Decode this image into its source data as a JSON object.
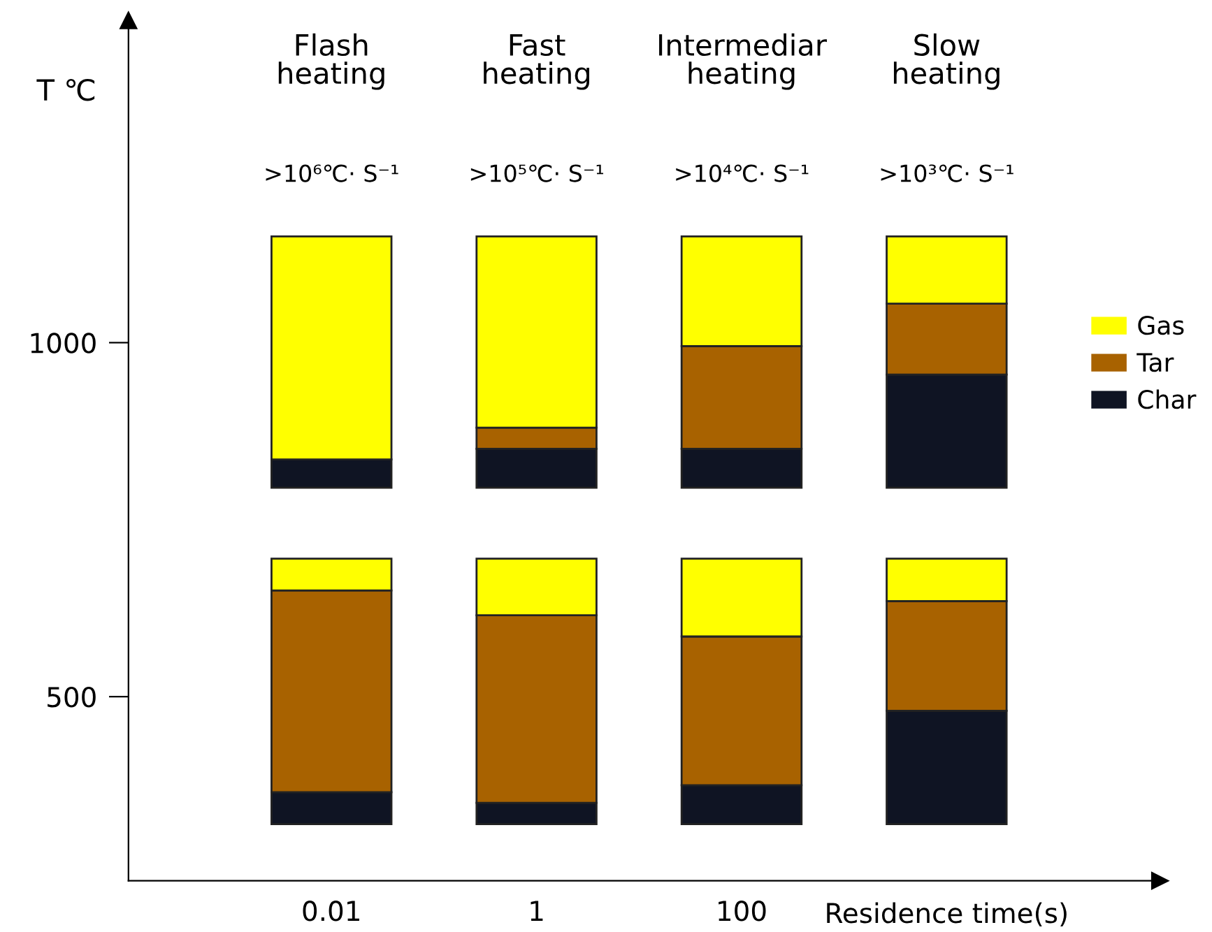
{
  "chart_data": {
    "type": "bar",
    "xlabel": "Residence time(s)",
    "ylabel": "T ℃",
    "categories": [
      "0.01",
      "1",
      "100",
      null
    ],
    "series": [
      {
        "color": "#0f1423",
        "base": [
          320,
          320,
          320,
          320
        ],
        "values": [
          45,
          30,
          55,
          160
        ]
      },
      {
        "color": "#a86200",
        "base": [
          365,
          350,
          375,
          480
        ],
        "values": [
          285,
          265,
          210,
          155
        ]
      },
      {
        "color": "#ffff00",
        "base": [
          650,
          615,
          585,
          635
        ],
        "values": [
          45,
          80,
          110,
          60
        ]
      },
      {
        "name": "Char",
        "color": "#0f1423",
        "base": [
          795,
          795,
          795,
          795
        ],
        "values": [
          40,
          55,
          55,
          160
        ]
      },
      {
        "name": "Tar",
        "color": "#a86200",
        "base": [
          null,
          850,
          850,
          955
        ],
        "values": [
          null,
          30,
          145,
          100
        ]
      },
      {
        "name": "Gas",
        "color": "#ffff00",
        "base": [
          835,
          880,
          995,
          1055
        ],
        "values": [
          315,
          270,
          155,
          95
        ]
      }
    ],
    "annotations": [
      "Flash\nheating",
      "Fast\nheating",
      "Intermediar\nheating",
      "Slow\nheating",
      ">10⁶℃· S⁻¹",
      ">10⁵℃· S⁻¹",
      ">10⁴℃· S⁻¹",
      ">10³℃· S⁻¹"
    ],
    "ylim": [
      240,
      1455
    ],
    "yticks": [
      500,
      1000
    ],
    "grid": false,
    "legend": "right"
  }
}
